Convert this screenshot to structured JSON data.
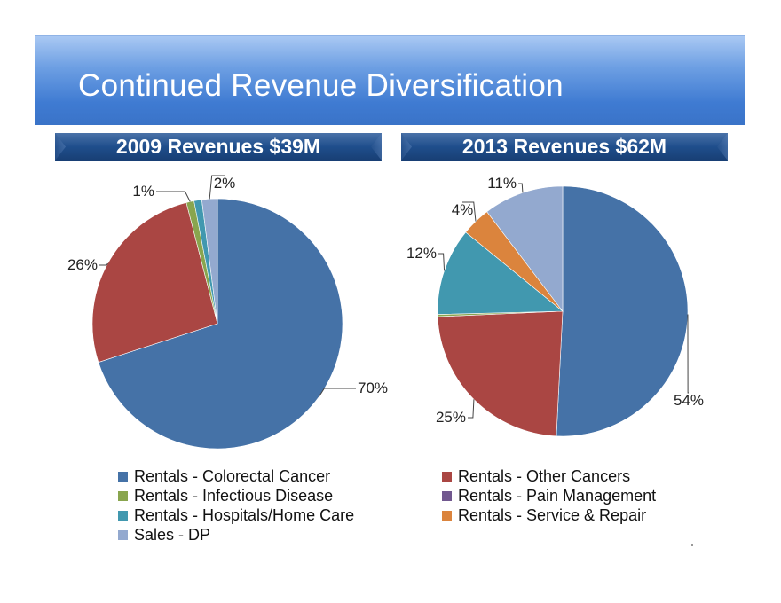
{
  "title": "Continued Revenue Diversification",
  "chart_data": [
    {
      "type": "pie",
      "title": "2009 Revenues $39M",
      "categories": [
        "Rentals - Colorectal Cancer",
        "Rentals - Other Cancers",
        "Rentals - Infectious Disease",
        "Rentals - Pain Management",
        "Rentals - Hospitals/Home Care",
        "Rentals - Service & Repair",
        "Sales - DP"
      ],
      "values": [
        70,
        26,
        1,
        0,
        1,
        0,
        2
      ],
      "labels": [
        "70%",
        "26%",
        "1%",
        "",
        "1%",
        "",
        "2%"
      ]
    },
    {
      "type": "pie",
      "title": "2013 Revenues  $62M",
      "categories": [
        "Rentals - Colorectal Cancer",
        "Rentals - Other Cancers",
        "Rentals - Infectious Disease",
        "Rentals - Pain Management",
        "Rentals - Hospitals/Home Care",
        "Rentals - Service & Repair",
        "Sales - DP"
      ],
      "values": [
        54,
        25,
        0.3,
        0,
        12,
        4,
        11
      ],
      "labels": [
        "54%",
        "25%",
        "",
        "",
        "12%",
        "4%",
        "11%"
      ]
    }
  ],
  "legend": {
    "left": [
      {
        "label": "Rentals - Colorectal Cancer",
        "color": "#4572a7"
      },
      {
        "label": "Rentals - Infectious Disease",
        "color": "#89a54e"
      },
      {
        "label": "Rentals - Hospitals/Home Care",
        "color": "#4198af"
      },
      {
        "label": "Sales - DP",
        "color": "#93a9cf"
      }
    ],
    "right": [
      {
        "label": "Rentals - Other Cancers",
        "color": "#aa4643"
      },
      {
        "label": "Rentals - Pain Management",
        "color": "#71588f"
      },
      {
        "label": "Rentals - Service & Repair",
        "color": "#db843d"
      }
    ]
  },
  "colors": [
    "#4572a7",
    "#aa4643",
    "#89a54e",
    "#71588f",
    "#4198af",
    "#db843d",
    "#93a9cf"
  ]
}
